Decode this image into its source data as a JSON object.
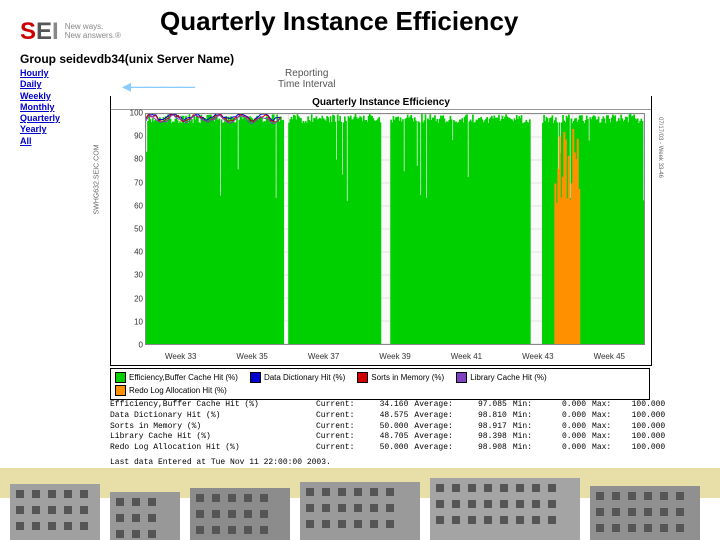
{
  "title": "Quarterly Instance Efficiency",
  "logo": {
    "brand_s": "S",
    "brand_e": "E",
    "brand_i": "I",
    "tagline1": "New ways.",
    "tagline2": "New answers.®"
  },
  "report": {
    "group_label": "Group seidevdb34(unix Server Name)",
    "intervals": [
      "Hourly",
      "Daily",
      "Weekly",
      "Monthly",
      "Quarterly",
      "Yearly",
      "All"
    ],
    "interval_caption_1": "Reporting",
    "interval_caption_2": "Time Interval",
    "chart_title": "Quarterly Instance Efficiency",
    "ylabel": "SWHG632.SEIC.COM",
    "rlabel": "07/17/03 - Week 33-46",
    "ylim": [
      0,
      100
    ],
    "yticks": [
      0,
      10,
      20,
      30,
      40,
      50,
      60,
      70,
      80,
      90,
      100
    ],
    "xlabels": [
      "Week 33",
      "Week 35",
      "Week 37",
      "Week 39",
      "Week 41",
      "Week 43",
      "Week 45"
    ],
    "bg": "#fafafa",
    "grid_color": "#cccccc",
    "series": [
      {
        "name": "Efficiency,Buffer Cache Hit (%)",
        "color": "#00d000"
      },
      {
        "name": "Data Dictionary Hit (%)",
        "color": "#0000d0"
      },
      {
        "name": "Sorts in Memory (%)",
        "color": "#d00000"
      },
      {
        "name": "Library Cache Hit (%)",
        "color": "#8040c0"
      },
      {
        "name": "Redo Log Allocation Hit (%)",
        "color": "#ff9000"
      }
    ],
    "gaps": [
      [
        0.275,
        0.285
      ],
      [
        0.47,
        0.49
      ],
      [
        0.77,
        0.795
      ]
    ],
    "orange_region": [
      0.82,
      0.87,
      60
    ],
    "stats": [
      {
        "label": "Efficiency,Buffer Cache Hit (%)",
        "cur": "34.160",
        "avg": "97.085",
        "min": "0.000",
        "max": "100.000"
      },
      {
        "label": "Data Dictionary Hit (%)",
        "cur": "48.575",
        "avg": "98.810",
        "min": "0.000",
        "max": "100.000"
      },
      {
        "label": "Sorts in Memory (%)",
        "cur": "50.000",
        "avg": "98.917",
        "min": "0.000",
        "max": "100.000"
      },
      {
        "label": "Library Cache Hit (%)",
        "cur": "48.705",
        "avg": "98.398",
        "min": "0.000",
        "max": "100.000"
      },
      {
        "label": "Redo Log Allocation Hit (%)",
        "cur": "50.000",
        "avg": "98.908",
        "min": "0.000",
        "max": "100.000"
      }
    ],
    "last_entered": "Last data Entered at Tue Nov 11 22:00:00 2003."
  },
  "footer": {
    "band_color": "#e8dfa8",
    "buildings": [
      {
        "x": 10,
        "w": 90,
        "h": 56,
        "c": "#a0a0a0"
      },
      {
        "x": 110,
        "w": 70,
        "h": 48,
        "c": "#989898"
      },
      {
        "x": 190,
        "w": 100,
        "h": 52,
        "c": "#8c8c8c"
      },
      {
        "x": 300,
        "w": 120,
        "h": 58,
        "c": "#9a9a9a"
      },
      {
        "x": 430,
        "w": 150,
        "h": 62,
        "c": "#a4a4a4"
      },
      {
        "x": 590,
        "w": 110,
        "h": 54,
        "c": "#909090"
      }
    ]
  }
}
